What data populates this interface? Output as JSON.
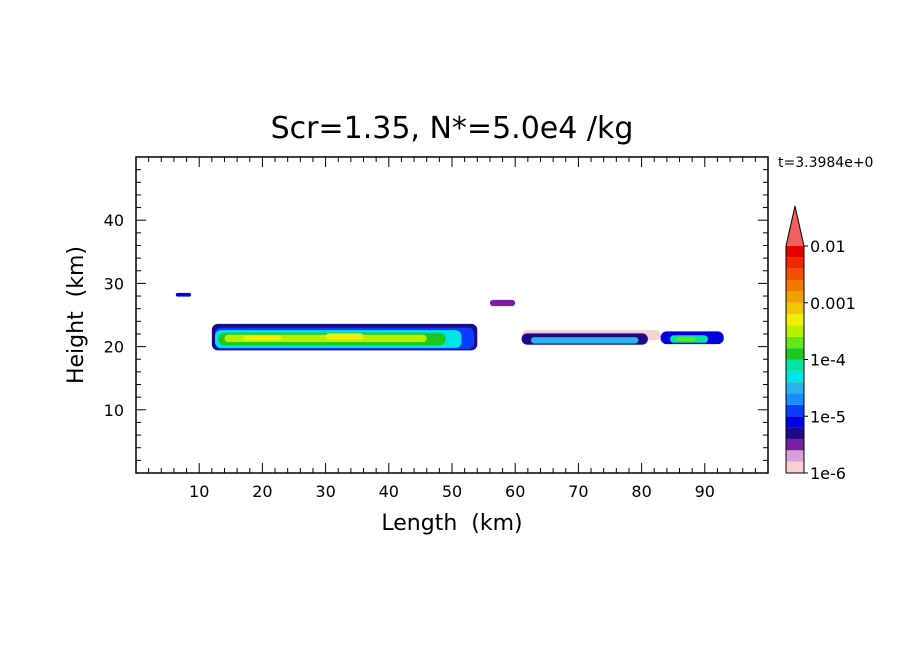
{
  "chart_data": {
    "type": "heatmap",
    "title": "Scr=1.35, N*=5.0e4 /kg",
    "time_label": "t=3.3984e+0",
    "xlabel": "Length  (km)",
    "ylabel": "Height  (km)",
    "xlim": [
      0,
      100
    ],
    "ylim": [
      0,
      50
    ],
    "x_ticks": [
      10,
      20,
      30,
      40,
      50,
      60,
      70,
      80,
      90
    ],
    "y_ticks": [
      10,
      20,
      30,
      40
    ],
    "colorbar": {
      "scale": "log",
      "range": [
        1e-06,
        0.01
      ],
      "tick_labels": [
        "1e-6",
        "1e-5",
        "1e-4",
        "0.001",
        "0.01"
      ],
      "colors": [
        "#f7d0d0",
        "#d8a0d8",
        "#7a1fa0",
        "#1a0a8a",
        "#0000e0",
        "#0a3cff",
        "#1a8cff",
        "#28b4e6",
        "#00e6e6",
        "#00e6a0",
        "#1ec81e",
        "#64e614",
        "#b4f000",
        "#f0f000",
        "#f0c800",
        "#f0a000",
        "#f07800",
        "#f05000",
        "#f02800",
        "#e60000"
      ],
      "extend_color": "#f06060"
    },
    "features": [
      {
        "x": 7.5,
        "y": 28.2,
        "dx": 1.2,
        "dy": 0.3,
        "level": 4
      },
      {
        "x": 58,
        "y": 26.9,
        "dx": 2.0,
        "dy": 0.5,
        "level": 2
      },
      {
        "x": 33,
        "y": 21.5,
        "dx": 21,
        "dy": 2.1,
        "level": 3
      },
      {
        "x": 33,
        "y": 21.3,
        "dx": 20.5,
        "dy": 1.7,
        "level": 5
      },
      {
        "x": 32,
        "y": 21.2,
        "dx": 19.5,
        "dy": 1.4,
        "level": 8
      },
      {
        "x": 31,
        "y": 21.2,
        "dx": 18,
        "dy": 1.0,
        "level": 10
      },
      {
        "x": 30,
        "y": 21.3,
        "dx": 16,
        "dy": 0.6,
        "level": 12
      },
      {
        "x": 33,
        "y": 21.6,
        "dx": 3,
        "dy": 0.5,
        "level": 13
      },
      {
        "x": 20,
        "y": 21.4,
        "dx": 3,
        "dy": 0.4,
        "level": 13
      },
      {
        "x": 72,
        "y": 21.8,
        "dx": 11,
        "dy": 0.8,
        "level": 0
      },
      {
        "x": 71,
        "y": 21.2,
        "dx": 10,
        "dy": 0.9,
        "level": 3
      },
      {
        "x": 71,
        "y": 21.0,
        "dx": 8.5,
        "dy": 0.5,
        "level": 7
      },
      {
        "x": 88,
        "y": 21.4,
        "dx": 5,
        "dy": 1.0,
        "level": 4
      },
      {
        "x": 87.5,
        "y": 21.2,
        "dx": 3,
        "dy": 0.6,
        "level": 9
      },
      {
        "x": 87,
        "y": 21.2,
        "dx": 1.5,
        "dy": 0.3,
        "level": 11
      }
    ]
  }
}
